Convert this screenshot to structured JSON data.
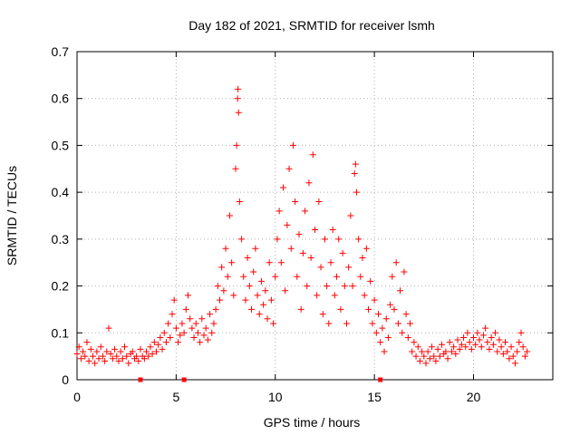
{
  "chart_data": {
    "type": "scatter",
    "title": "Day 182 of 2021, SRMTID for receiver lsmh",
    "xlabel": "GPS time / hours",
    "ylabel": "SRMTID / TECUs",
    "xlim": [
      0,
      24
    ],
    "ylim": [
      0,
      0.7
    ],
    "x_ticks": [
      0,
      5,
      10,
      15,
      20
    ],
    "y_ticks": [
      0,
      0.1,
      0.2,
      0.3,
      0.4,
      0.5,
      0.6,
      0.7
    ],
    "x_tick_labels": [
      "0",
      "5",
      "10",
      "15",
      "20"
    ],
    "y_tick_labels": [
      "0",
      "0.1",
      "0.2",
      "0.3",
      "0.4",
      "0.5",
      "0.6",
      "0.7"
    ],
    "grid": true,
    "marker": "+",
    "color": "#ff0000",
    "baseline_markers_x": [
      3.2,
      5.4,
      15.3
    ],
    "series": [
      {
        "name": "SRMTID",
        "points": [
          [
            0.0,
            0.055
          ],
          [
            0.1,
            0.07
          ],
          [
            0.2,
            0.045
          ],
          [
            0.3,
            0.06
          ],
          [
            0.4,
            0.05
          ],
          [
            0.5,
            0.08
          ],
          [
            0.6,
            0.04
          ],
          [
            0.7,
            0.065
          ],
          [
            0.8,
            0.05
          ],
          [
            0.9,
            0.035
          ],
          [
            1.0,
            0.06
          ],
          [
            1.1,
            0.045
          ],
          [
            1.2,
            0.07
          ],
          [
            1.3,
            0.05
          ],
          [
            1.4,
            0.04
          ],
          [
            1.5,
            0.06
          ],
          [
            1.6,
            0.11
          ],
          [
            1.7,
            0.055
          ],
          [
            1.8,
            0.045
          ],
          [
            1.9,
            0.065
          ],
          [
            2.0,
            0.05
          ],
          [
            2.1,
            0.04
          ],
          [
            2.2,
            0.06
          ],
          [
            2.3,
            0.045
          ],
          [
            2.4,
            0.07
          ],
          [
            2.5,
            0.05
          ],
          [
            2.6,
            0.035
          ],
          [
            2.7,
            0.055
          ],
          [
            2.8,
            0.06
          ],
          [
            2.9,
            0.045
          ],
          [
            3.0,
            0.05
          ],
          [
            3.1,
            0.04
          ],
          [
            3.2,
            0.065
          ],
          [
            3.3,
            0.05
          ],
          [
            3.4,
            0.045
          ],
          [
            3.5,
            0.06
          ],
          [
            3.6,
            0.05
          ],
          [
            3.7,
            0.07
          ],
          [
            3.8,
            0.055
          ],
          [
            3.9,
            0.08
          ],
          [
            4.0,
            0.06
          ],
          [
            4.1,
            0.075
          ],
          [
            4.2,
            0.09
          ],
          [
            4.3,
            0.065
          ],
          [
            4.4,
            0.1
          ],
          [
            4.5,
            0.08
          ],
          [
            4.6,
            0.12
          ],
          [
            4.7,
            0.09
          ],
          [
            4.8,
            0.14
          ],
          [
            4.9,
            0.17
          ],
          [
            5.0,
            0.11
          ],
          [
            5.1,
            0.08
          ],
          [
            5.2,
            0.095
          ],
          [
            5.3,
            0.12
          ],
          [
            5.4,
            0.1
          ],
          [
            5.5,
            0.15
          ],
          [
            5.6,
            0.18
          ],
          [
            5.7,
            0.13
          ],
          [
            5.8,
            0.11
          ],
          [
            5.9,
            0.09
          ],
          [
            6.0,
            0.12
          ],
          [
            6.1,
            0.1
          ],
          [
            6.2,
            0.08
          ],
          [
            6.3,
            0.13
          ],
          [
            6.4,
            0.095
          ],
          [
            6.5,
            0.11
          ],
          [
            6.6,
            0.085
          ],
          [
            6.7,
            0.14
          ],
          [
            6.8,
            0.1
          ],
          [
            6.9,
            0.12
          ],
          [
            7.0,
            0.15
          ],
          [
            7.1,
            0.2
          ],
          [
            7.2,
            0.17
          ],
          [
            7.3,
            0.24
          ],
          [
            7.4,
            0.19
          ],
          [
            7.5,
            0.28
          ],
          [
            7.6,
            0.22
          ],
          [
            7.7,
            0.35
          ],
          [
            7.8,
            0.25
          ],
          [
            7.9,
            0.18
          ],
          [
            8.0,
            0.45
          ],
          [
            8.05,
            0.5
          ],
          [
            8.1,
            0.6
          ],
          [
            8.12,
            0.62
          ],
          [
            8.15,
            0.57
          ],
          [
            8.2,
            0.38
          ],
          [
            8.3,
            0.3
          ],
          [
            8.4,
            0.22
          ],
          [
            8.5,
            0.17
          ],
          [
            8.6,
            0.26
          ],
          [
            8.7,
            0.2
          ],
          [
            8.8,
            0.15
          ],
          [
            8.9,
            0.23
          ],
          [
            9.0,
            0.28
          ],
          [
            9.1,
            0.18
          ],
          [
            9.2,
            0.14
          ],
          [
            9.3,
            0.21
          ],
          [
            9.4,
            0.16
          ],
          [
            9.5,
            0.19
          ],
          [
            9.6,
            0.13
          ],
          [
            9.7,
            0.25
          ],
          [
            9.8,
            0.17
          ],
          [
            9.9,
            0.12
          ],
          [
            10.0,
            0.22
          ],
          [
            10.1,
            0.3
          ],
          [
            10.2,
            0.36
          ],
          [
            10.3,
            0.25
          ],
          [
            10.4,
            0.41
          ],
          [
            10.5,
            0.19
          ],
          [
            10.6,
            0.33
          ],
          [
            10.7,
            0.45
          ],
          [
            10.8,
            0.28
          ],
          [
            10.9,
            0.5
          ],
          [
            11.0,
            0.38
          ],
          [
            11.1,
            0.22
          ],
          [
            11.2,
            0.31
          ],
          [
            11.3,
            0.15
          ],
          [
            11.4,
            0.27
          ],
          [
            11.5,
            0.36
          ],
          [
            11.6,
            0.2
          ],
          [
            11.7,
            0.42
          ],
          [
            11.8,
            0.26
          ],
          [
            11.9,
            0.48
          ],
          [
            12.0,
            0.32
          ],
          [
            12.1,
            0.18
          ],
          [
            12.2,
            0.38
          ],
          [
            12.3,
            0.24
          ],
          [
            12.4,
            0.14
          ],
          [
            12.5,
            0.3
          ],
          [
            12.6,
            0.2
          ],
          [
            12.7,
            0.12
          ],
          [
            12.8,
            0.25
          ],
          [
            12.9,
            0.32
          ],
          [
            13.0,
            0.18
          ],
          [
            13.1,
            0.22
          ],
          [
            13.2,
            0.3
          ],
          [
            13.3,
            0.15
          ],
          [
            13.4,
            0.27
          ],
          [
            13.5,
            0.2
          ],
          [
            13.6,
            0.12
          ],
          [
            13.7,
            0.24
          ],
          [
            13.8,
            0.35
          ],
          [
            13.9,
            0.2
          ],
          [
            14.0,
            0.44
          ],
          [
            14.05,
            0.46
          ],
          [
            14.1,
            0.4
          ],
          [
            14.2,
            0.3
          ],
          [
            14.3,
            0.22
          ],
          [
            14.4,
            0.26
          ],
          [
            14.5,
            0.18
          ],
          [
            14.6,
            0.28
          ],
          [
            14.7,
            0.15
          ],
          [
            14.8,
            0.21
          ],
          [
            14.9,
            0.12
          ],
          [
            15.0,
            0.17
          ],
          [
            15.1,
            0.1
          ],
          [
            15.2,
            0.14
          ],
          [
            15.3,
            0.08
          ],
          [
            15.4,
            0.11
          ],
          [
            15.5,
            0.06
          ],
          [
            15.6,
            0.13
          ],
          [
            15.7,
            0.09
          ],
          [
            15.8,
            0.16
          ],
          [
            15.9,
            0.22
          ],
          [
            16.0,
            0.15
          ],
          [
            16.1,
            0.25
          ],
          [
            16.2,
            0.12
          ],
          [
            16.3,
            0.19
          ],
          [
            16.4,
            0.1
          ],
          [
            16.5,
            0.23
          ],
          [
            16.6,
            0.14
          ],
          [
            16.7,
            0.09
          ],
          [
            16.8,
            0.12
          ],
          [
            16.9,
            0.06
          ],
          [
            17.0,
            0.08
          ],
          [
            17.1,
            0.05
          ],
          [
            17.2,
            0.07
          ],
          [
            17.3,
            0.04
          ],
          [
            17.4,
            0.06
          ],
          [
            17.5,
            0.05
          ],
          [
            17.6,
            0.035
          ],
          [
            17.7,
            0.06
          ],
          [
            17.8,
            0.045
          ],
          [
            17.9,
            0.07
          ],
          [
            18.0,
            0.05
          ],
          [
            18.1,
            0.04
          ],
          [
            18.2,
            0.065
          ],
          [
            18.3,
            0.05
          ],
          [
            18.4,
            0.075
          ],
          [
            18.5,
            0.055
          ],
          [
            18.6,
            0.06
          ],
          [
            18.7,
            0.045
          ],
          [
            18.8,
            0.08
          ],
          [
            18.9,
            0.06
          ],
          [
            19.0,
            0.07
          ],
          [
            19.1,
            0.055
          ],
          [
            19.2,
            0.085
          ],
          [
            19.3,
            0.065
          ],
          [
            19.4,
            0.075
          ],
          [
            19.5,
            0.09
          ],
          [
            19.6,
            0.07
          ],
          [
            19.7,
            0.1
          ],
          [
            19.8,
            0.08
          ],
          [
            19.9,
            0.065
          ],
          [
            20.0,
            0.09
          ],
          [
            20.1,
            0.075
          ],
          [
            20.2,
            0.1
          ],
          [
            20.3,
            0.085
          ],
          [
            20.4,
            0.07
          ],
          [
            20.5,
            0.095
          ],
          [
            20.6,
            0.11
          ],
          [
            20.7,
            0.08
          ],
          [
            20.8,
            0.065
          ],
          [
            20.9,
            0.09
          ],
          [
            21.0,
            0.075
          ],
          [
            21.1,
            0.1
          ],
          [
            21.2,
            0.06
          ],
          [
            21.3,
            0.085
          ],
          [
            21.4,
            0.07
          ],
          [
            21.5,
            0.055
          ],
          [
            21.6,
            0.08
          ],
          [
            21.7,
            0.06
          ],
          [
            21.8,
            0.045
          ],
          [
            21.9,
            0.07
          ],
          [
            22.0,
            0.05
          ],
          [
            22.1,
            0.035
          ],
          [
            22.2,
            0.06
          ],
          [
            22.3,
            0.08
          ],
          [
            22.4,
            0.1
          ],
          [
            22.5,
            0.07
          ],
          [
            22.6,
            0.05
          ],
          [
            22.7,
            0.06
          ]
        ]
      }
    ]
  }
}
